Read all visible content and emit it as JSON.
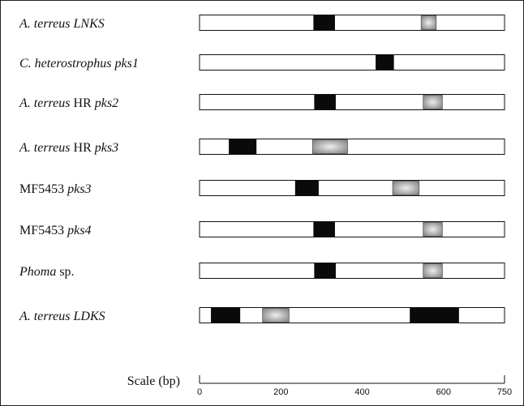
{
  "rows": [
    {
      "label": [
        {
          "t": "A. terreus LNKS",
          "i": true
        }
      ],
      "boxes": [
        {
          "start": 280,
          "end": 333,
          "kind": "black"
        },
        {
          "start": 545,
          "end": 582,
          "kind": "gray"
        }
      ]
    },
    {
      "label": [
        {
          "t": "C. heterostrophus pks1",
          "i": true
        }
      ],
      "boxes": [
        {
          "start": 433,
          "end": 478,
          "kind": "black"
        }
      ]
    },
    {
      "label": [
        {
          "t": "A. terreus",
          "i": true
        },
        {
          "t": " HR ",
          "i": false
        },
        {
          "t": "pks2",
          "i": true
        }
      ],
      "boxes": [
        {
          "start": 282,
          "end": 335,
          "kind": "black"
        },
        {
          "start": 550,
          "end": 597,
          "kind": "gray"
        }
      ]
    },
    {
      "label": [
        {
          "t": "A. terreus",
          "i": true
        },
        {
          "t": " HR ",
          "i": false
        },
        {
          "t": "pks3",
          "i": true
        }
      ],
      "boxes": [
        {
          "start": 72,
          "end": 140,
          "kind": "black"
        },
        {
          "start": 278,
          "end": 364,
          "kind": "gray"
        }
      ]
    },
    {
      "label": [
        {
          "t": "MF5453 ",
          "i": false
        },
        {
          "t": "pks3",
          "i": true
        }
      ],
      "boxes": [
        {
          "start": 235,
          "end": 293,
          "kind": "black"
        },
        {
          "start": 475,
          "end": 540,
          "kind": "gray"
        }
      ]
    },
    {
      "label": [
        {
          "t": "MF5453 ",
          "i": false
        },
        {
          "t": "pks4",
          "i": true
        }
      ],
      "boxes": [
        {
          "start": 280,
          "end": 333,
          "kind": "black"
        },
        {
          "start": 550,
          "end": 597,
          "kind": "gray"
        }
      ]
    },
    {
      "label": [
        {
          "t": "Phoma",
          "i": true
        },
        {
          "t": " sp.",
          "i": false
        }
      ],
      "boxes": [
        {
          "start": 282,
          "end": 335,
          "kind": "black"
        },
        {
          "start": 550,
          "end": 597,
          "kind": "gray"
        }
      ]
    },
    {
      "label": [
        {
          "t": "A. terreus LDKS",
          "i": true
        }
      ],
      "boxes": [
        {
          "start": 28,
          "end": 100,
          "kind": "black"
        },
        {
          "start": 155,
          "end": 220,
          "kind": "gray"
        },
        {
          "start": 517,
          "end": 638,
          "kind": "black"
        }
      ]
    }
  ],
  "scale": {
    "label": "Scale (bp)",
    "min": 0,
    "max": 750,
    "ticks": [
      "0",
      "200",
      "400",
      "600",
      "750"
    ]
  },
  "colors": {
    "black_box": "#0a0a0a",
    "gray_box": "#9a9a9a",
    "bar_fill": "#ffffff",
    "outline": "#111111"
  }
}
